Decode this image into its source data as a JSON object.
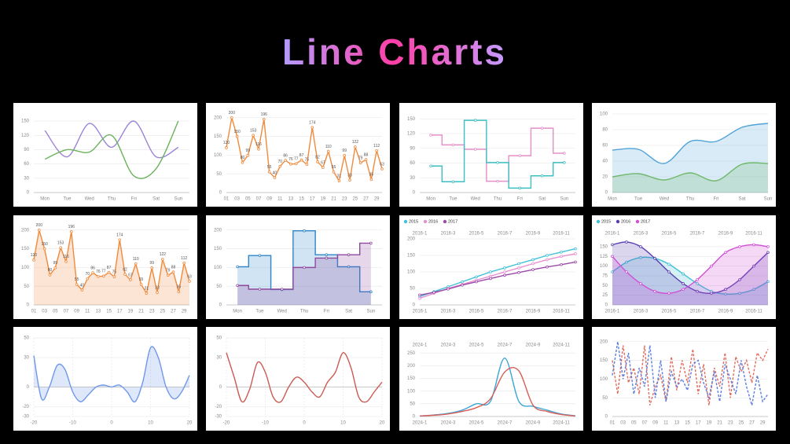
{
  "header": {
    "title": "Line Charts"
  },
  "chart_data": [
    {
      "type": "line",
      "smooth": true,
      "boundary_gap": true,
      "categories": [
        "Mon",
        "Tue",
        "Wed",
        "Thu",
        "Fri",
        "Sat",
        "Sun"
      ],
      "series": [
        {
          "color": "#9b83d6",
          "values": [
            130,
            75,
            145,
            95,
            150,
            75,
            95
          ]
        },
        {
          "color": "#6cb35c",
          "values": [
            70,
            90,
            85,
            120,
            35,
            50,
            150
          ]
        }
      ],
      "ylim": [
        0,
        165
      ],
      "yticks": [
        0,
        30,
        60,
        90,
        120,
        150
      ]
    },
    {
      "type": "line",
      "symbols": true,
      "show_values": true,
      "categories": [
        "01",
        null,
        "03",
        null,
        "05",
        null,
        "07",
        null,
        "09",
        null,
        "11",
        null,
        "13",
        null,
        "15",
        null,
        "17",
        null,
        "19",
        null,
        "21",
        null,
        "23",
        null,
        "25",
        null,
        "27",
        null,
        "29",
        null
      ],
      "series": [
        {
          "color": "#f08a3c",
          "values": [
            120,
            200,
            150,
            80,
            99,
            153,
            116,
            196,
            55,
            40,
            70,
            86,
            76,
            77,
            87,
            75,
            174,
            82,
            67,
            110,
            55,
            31,
            99,
            33,
            122,
            79,
            88,
            35,
            112,
            63
          ]
        }
      ],
      "ylim": [
        0,
        210
      ],
      "yticks": [
        0,
        50,
        100,
        150,
        200
      ]
    },
    {
      "type": "line",
      "step": "middle",
      "symbols": true,
      "boundary_gap": true,
      "categories": [
        "Mon",
        "Tue",
        "Wed",
        "Thu",
        "Fri",
        "Sat",
        "Sun"
      ],
      "series": [
        {
          "color": "#e48fc6",
          "values": [
            117,
            97,
            88,
            23,
            75,
            131,
            80
          ]
        },
        {
          "color": "#3bbfc2",
          "values": [
            54,
            22,
            147,
            61,
            9,
            34,
            61
          ]
        }
      ],
      "ylim": [
        0,
        160
      ],
      "yticks": [
        0,
        30,
        60,
        90,
        120,
        150
      ]
    },
    {
      "type": "line",
      "smooth": true,
      "area": true,
      "categories": [
        "Mon",
        "Tue",
        "Wed",
        "Thu",
        "Fri",
        "Sat",
        "Sun"
      ],
      "series": [
        {
          "color": "#4fa3d8",
          "values": [
            54,
            55,
            37,
            65,
            65,
            83,
            88
          ]
        },
        {
          "color": "#6fb86a",
          "values": [
            20,
            24,
            16,
            25,
            15,
            36,
            37
          ]
        }
      ],
      "ylim": [
        0,
        100
      ],
      "yticks": [
        0,
        20,
        40,
        60,
        80,
        100
      ]
    },
    {
      "type": "line",
      "symbols": true,
      "show_values": true,
      "area": true,
      "categories": [
        "01",
        null,
        "03",
        null,
        "05",
        null,
        "07",
        null,
        "09",
        null,
        "11",
        null,
        "13",
        null,
        "15",
        null,
        "17",
        null,
        "19",
        null,
        "21",
        null,
        "23",
        null,
        "25",
        null,
        "27",
        null,
        "29",
        null
      ],
      "series": [
        {
          "color": "#f08a3c",
          "values": [
            120,
            200,
            150,
            80,
            99,
            153,
            116,
            196,
            55,
            40,
            70,
            86,
            76,
            77,
            87,
            75,
            174,
            82,
            67,
            110,
            55,
            31,
            99,
            33,
            122,
            79,
            88,
            35,
            112,
            63
          ]
        }
      ],
      "ylim": [
        0,
        210
      ],
      "yticks": [
        0,
        50,
        100,
        150,
        200
      ]
    },
    {
      "type": "line",
      "step": "middle",
      "symbols": true,
      "area": true,
      "boundary_gap": true,
      "categories": [
        "Mon",
        "Tue",
        "Wed",
        "Thu",
        "Fri",
        "Sat",
        "Sun"
      ],
      "series": [
        {
          "color": "#2f86c9",
          "values": [
            102,
            132,
            41,
            198,
            134,
            102,
            35
          ]
        },
        {
          "color": "#8e4a9e",
          "values": [
            52,
            42,
            42,
            100,
            125,
            134,
            165
          ]
        }
      ],
      "ylim": [
        0,
        210
      ],
      "yticks": [
        0,
        50,
        100,
        150,
        200
      ]
    },
    {
      "type": "line",
      "symbols": true,
      "top_axis": true,
      "legend": "top-left",
      "categories": [
        "2016-1",
        null,
        "2016-3",
        null,
        "2016-5",
        null,
        "2016-7",
        null,
        "2016-9",
        null,
        "2016-11",
        null
      ],
      "series": [
        {
          "name": "2015",
          "color": "#3fc1d9",
          "values": [
            25,
            40,
            55,
            70,
            85,
            100,
            112,
            125,
            137,
            150,
            160,
            170
          ]
        },
        {
          "name": "2016",
          "color": "#e98ed0",
          "values": [
            20,
            35,
            50,
            62,
            75,
            87,
            100,
            112,
            125,
            137,
            147,
            155
          ]
        },
        {
          "name": "2017",
          "color": "#9b4aa8",
          "values": [
            30,
            38,
            48,
            60,
            70,
            80,
            90,
            98,
            107,
            115,
            122,
            130
          ]
        }
      ],
      "ylim": [
        0,
        200
      ],
      "yticks": [
        0,
        50,
        100,
        150,
        200
      ]
    },
    {
      "type": "line",
      "smooth": true,
      "symbols": true,
      "area": true,
      "top_axis": true,
      "legend": "top-left",
      "categories": [
        "2016-1",
        null,
        "2016-3",
        null,
        "2016-5",
        null,
        "2016-7",
        null,
        "2016-9",
        null,
        "2016-11",
        null
      ],
      "series": [
        {
          "name": "2015",
          "color": "#3fc1d9",
          "values": [
            85,
            110,
            122,
            120,
            105,
            80,
            55,
            35,
            28,
            30,
            40,
            60
          ]
        },
        {
          "name": "2016",
          "color": "#5a3fb0",
          "values": [
            155,
            162,
            150,
            120,
            85,
            55,
            35,
            30,
            40,
            65,
            100,
            135
          ]
        },
        {
          "name": "2017",
          "color": "#d14fd6",
          "values": [
            125,
            85,
            55,
            35,
            30,
            40,
            65,
            100,
            135,
            150,
            155,
            150
          ]
        }
      ],
      "ylim": [
        0,
        170
      ],
      "yticks": [
        0,
        25,
        50,
        75,
        100,
        125,
        150
      ]
    },
    {
      "type": "line",
      "smooth": true,
      "area": true,
      "x": [
        -20,
        -18,
        -16,
        -14,
        -12,
        -10,
        -8,
        -6,
        -4,
        -2,
        0,
        2,
        4,
        6,
        8,
        10,
        12,
        14,
        16,
        18,
        20
      ],
      "series": [
        {
          "color": "#6f98e8",
          "values": [
            32,
            -12,
            0,
            22,
            18,
            -5,
            -15,
            -8,
            0,
            2,
            0,
            2,
            -5,
            -15,
            5,
            40,
            30,
            0,
            -12,
            -5,
            12
          ]
        }
      ],
      "xlim": [
        -20,
        20
      ],
      "xticks": [
        -20,
        -10,
        0,
        10,
        20
      ],
      "ylim": [
        -30,
        50
      ],
      "yticks": [
        -30,
        -20,
        0,
        30,
        50
      ]
    },
    {
      "type": "line",
      "smooth": true,
      "x": [
        -20,
        -18,
        -16,
        -14,
        -12,
        -10,
        -8,
        -6,
        -4,
        -2,
        0,
        2,
        4,
        6,
        8,
        10,
        12,
        14,
        16,
        18,
        20
      ],
      "series": [
        {
          "color": "#cc5a52",
          "values": [
            35,
            10,
            -15,
            -2,
            25,
            15,
            -10,
            -15,
            0,
            10,
            5,
            -5,
            -10,
            5,
            15,
            35,
            20,
            -10,
            -15,
            -5,
            5
          ]
        }
      ],
      "xlim": [
        -20,
        20
      ],
      "xticks": [
        -20,
        -10,
        0,
        10,
        20
      ],
      "ylim": [
        -30,
        50
      ],
      "yticks": [
        -30,
        -20,
        0,
        30,
        50
      ]
    },
    {
      "type": "line",
      "smooth": true,
      "top_axis": true,
      "categories": [
        "2024-1",
        null,
        "2024-3",
        null,
        "2024-5",
        null,
        "2024-7",
        null,
        "2024-9",
        null,
        "2024-11",
        null
      ],
      "series": [
        {
          "color": "#3aa6d8",
          "values": [
            2,
            6,
            12,
            25,
            50,
            60,
            230,
            60,
            40,
            25,
            10,
            3
          ]
        },
        {
          "color": "#d9605a",
          "values": [
            2,
            5,
            10,
            20,
            35,
            70,
            175,
            180,
            45,
            20,
            8,
            2
          ]
        }
      ],
      "ylim": [
        0,
        260
      ],
      "yticks": [
        0,
        50,
        100,
        150,
        200,
        250
      ]
    },
    {
      "type": "line",
      "line_style": "dashed",
      "categories": [
        "01",
        null,
        "03",
        null,
        "05",
        null,
        "07",
        null,
        "09",
        null,
        "11",
        null,
        "13",
        null,
        "15",
        null,
        "17",
        null,
        "19",
        null,
        "21",
        null,
        "23",
        null,
        "25",
        null,
        "27",
        null,
        "29",
        null
      ],
      "series": [
        {
          "color": "#e06c5c",
          "values": [
            150,
            60,
            190,
            90,
            130,
            60,
            190,
            30,
            80,
            110,
            40,
            160,
            70,
            150,
            90,
            180,
            60,
            140,
            30,
            130,
            80,
            170,
            50,
            160,
            120,
            150,
            90,
            170,
            150,
            180
          ]
        },
        {
          "color": "#5b7ce0",
          "values": [
            110,
            200,
            100,
            170,
            60,
            130,
            80,
            190,
            50,
            150,
            40,
            120,
            80,
            100,
            70,
            140,
            150,
            90,
            50,
            120,
            40,
            140,
            100,
            60,
            150,
            80,
            30,
            110,
            40,
            60
          ]
        }
      ],
      "ylim": [
        0,
        210
      ],
      "yticks": [
        0,
        50,
        100,
        150,
        200
      ]
    }
  ]
}
